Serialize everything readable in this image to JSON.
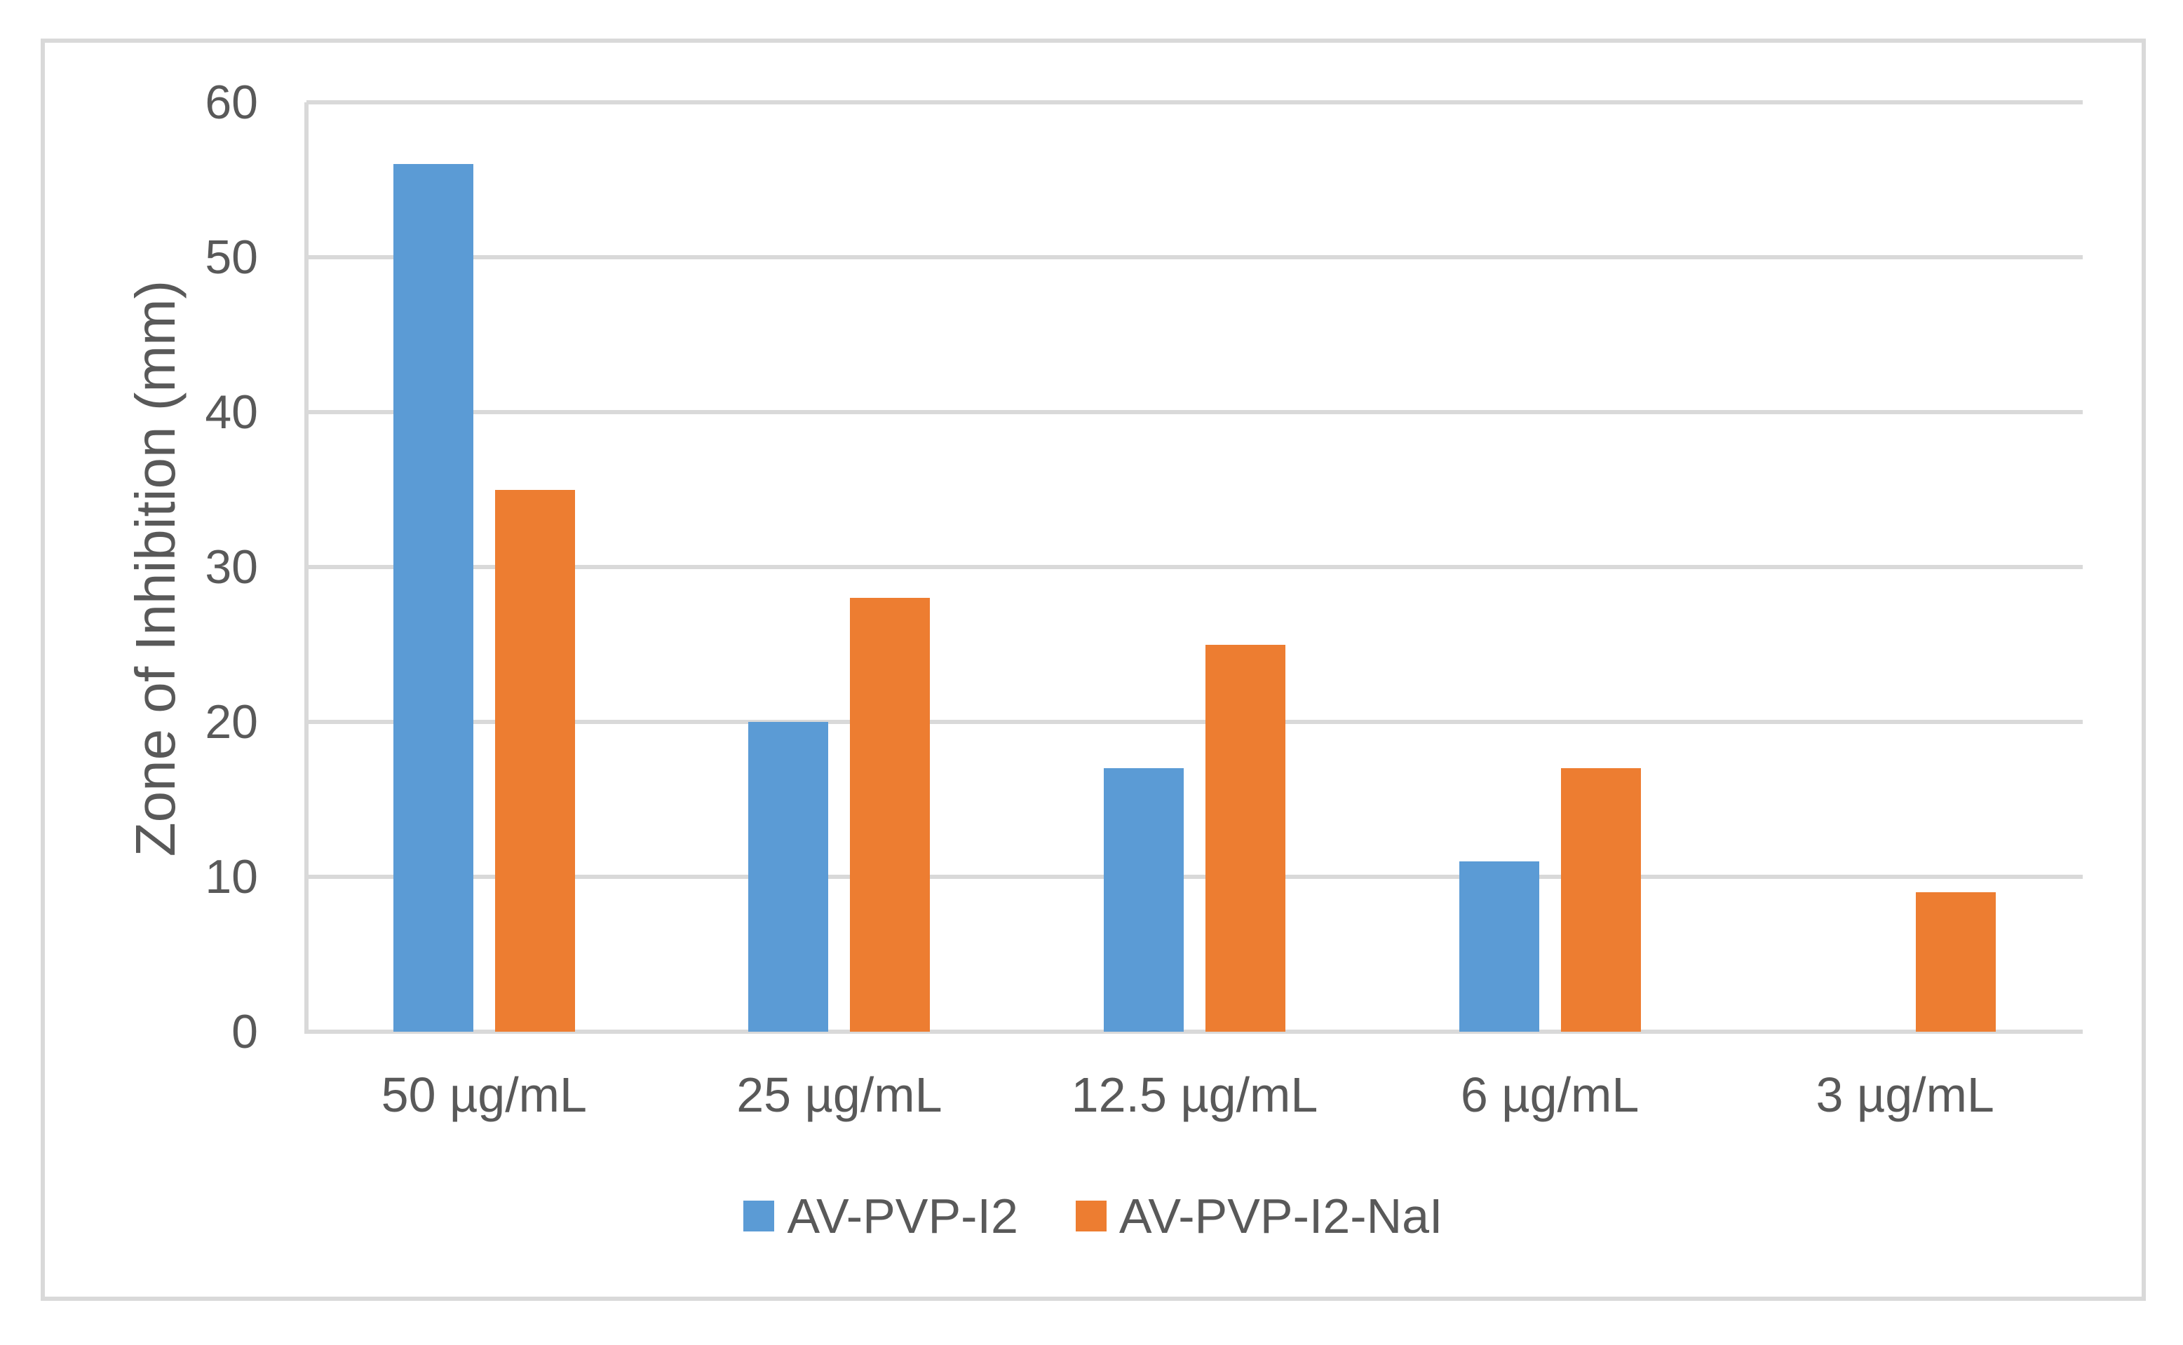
{
  "colors": {
    "series_blue": "#5B9BD5",
    "series_orange": "#ED7D31",
    "gridline": "#D9D9D9",
    "frame_border": "#D9D9D9",
    "text": "#595959"
  },
  "chart_data": {
    "type": "bar",
    "title": "",
    "ylabel": "Zone of Inhibition (mm)",
    "xlabel": "",
    "categories": [
      "50 µg/mL",
      "25 µg/mL",
      "12.5 µg/mL",
      "6 µg/mL",
      "3 µg/mL"
    ],
    "series": [
      {
        "name": "AV-PVP-I2",
        "color": "#5B9BD5",
        "values": [
          56,
          20,
          17,
          11,
          0
        ]
      },
      {
        "name": "AV-PVP-I2-NaI",
        "color": "#ED7D31",
        "values": [
          35,
          28,
          25,
          17,
          9
        ]
      }
    ],
    "ylim": [
      0,
      60
    ],
    "ytick_labels": [
      "0",
      "10",
      "20",
      "30",
      "40",
      "50",
      "60"
    ],
    "grid": true,
    "legend_position": "bottom"
  }
}
